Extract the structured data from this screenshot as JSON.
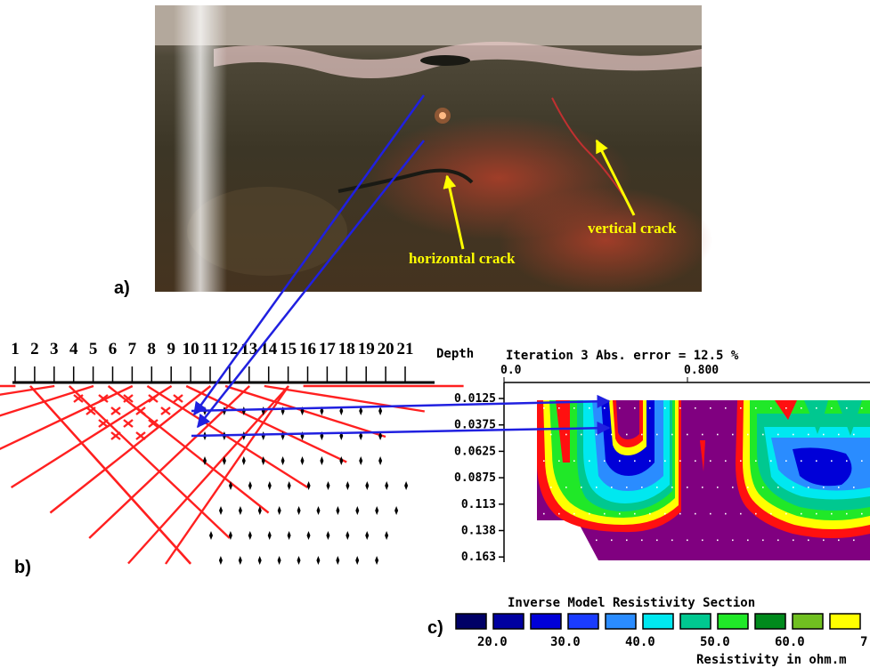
{
  "panels": {
    "a_label": "a)",
    "b_label": "b)",
    "c_label": "c)"
  },
  "photo": {
    "horizontal_label": "horizontal crack",
    "vertical_label": "vertical crack"
  },
  "electrodes": [
    "1",
    "2",
    "3",
    "4",
    "5",
    "6",
    "7",
    "8",
    "9",
    "10",
    "11",
    "12",
    "13",
    "14",
    "15",
    "16",
    "17",
    "18",
    "19",
    "20",
    "21"
  ],
  "section": {
    "depth_label": "Depth",
    "title": "Iteration 3 Abs. error = 12.5 %",
    "x_ticks": [
      "0.0",
      "0.800"
    ],
    "depth_ticks": [
      "0.0125",
      "0.0375",
      "0.0625",
      "0.0875",
      "0.113",
      "0.138",
      "0.163"
    ]
  },
  "legend": {
    "title": "Inverse Model Resistivity Section",
    "values": [
      "20.0",
      "30.0",
      "40.0",
      "50.0",
      "60.0",
      "7"
    ],
    "unit_label": "Resistivity in ohm.m",
    "colors": [
      "#000066",
      "#0000a0",
      "#0000d8",
      "#1a3cff",
      "#2a8cff",
      "#00e8f0",
      "#00c890",
      "#20e828",
      "#008a1c",
      "#70c020",
      "#ffff00"
    ]
  },
  "colors": {
    "pseudo_lines": "#ff2020",
    "arrow": "#2020e0",
    "annotation": "#ffff00",
    "section_background": "#800080"
  }
}
